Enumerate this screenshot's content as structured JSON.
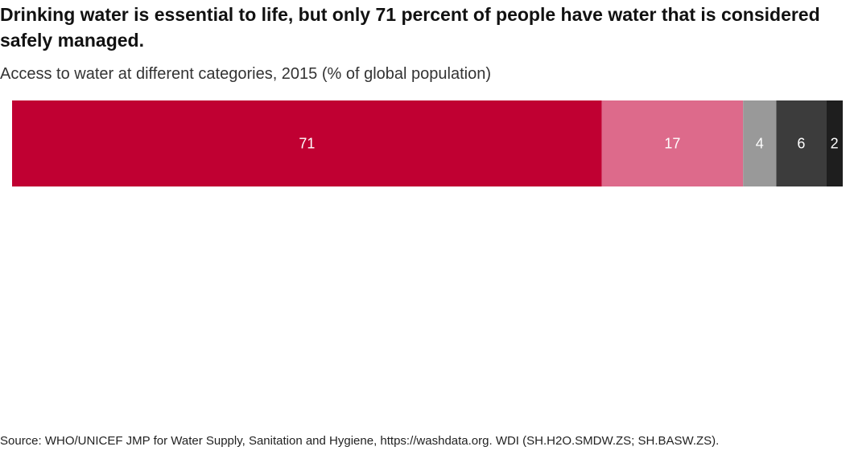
{
  "title": "Drinking water is essential to life, but only 71 percent of people have water that is considered safely managed.",
  "subtitle": "Access to water at different categories, 2015 (% of global population)",
  "source": "Source: WHO/UNICEF JMP for Water Supply, Sanitation and Hygiene, https://washdata.org. WDI (SH.H2O.SMDW.ZS; SH.BASW.ZS).",
  "chart_data": {
    "type": "bar",
    "orientation": "horizontal-stacked",
    "title": "Drinking water is essential to life, but only 71 percent of people have water that is considered safely managed.",
    "subtitle": "Access to water at different categories, 2015 (% of global population)",
    "xlabel": "",
    "ylabel": "",
    "xlim": [
      0,
      100
    ],
    "grid": false,
    "legend": "none",
    "series": [
      {
        "values": [
          71
        ],
        "label": "71",
        "color": "#c00032"
      },
      {
        "values": [
          17
        ],
        "label": "17",
        "color": "#dd6a8b"
      },
      {
        "values": [
          4
        ],
        "label": "4",
        "color": "#999999"
      },
      {
        "values": [
          6
        ],
        "label": "6",
        "color": "#3c3c3c"
      },
      {
        "values": [
          2
        ],
        "label": "2",
        "color": "#1e1e1e"
      }
    ]
  }
}
